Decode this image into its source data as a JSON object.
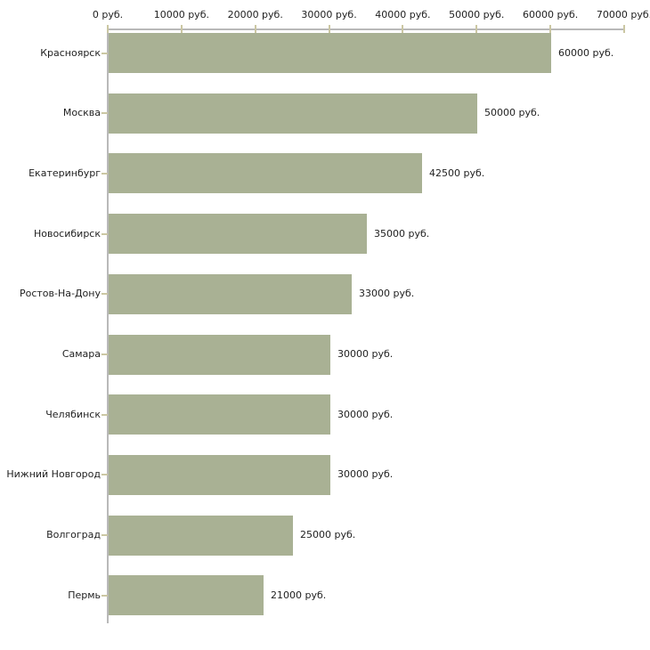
{
  "chart_data": {
    "type": "bar",
    "orientation": "horizontal",
    "title": "",
    "categories": [
      "Красноярск",
      "Москва",
      "Екатеринбург",
      "Новосибирск",
      "Ростов-На-Дону",
      "Самара",
      "Челябинск",
      "Нижний Новгород",
      "Волгоград",
      "Пермь"
    ],
    "values": [
      60000,
      50000,
      42500,
      35000,
      33000,
      30000,
      30000,
      30000,
      25000,
      21000
    ],
    "value_labels": [
      "60000 руб.",
      "50000 руб.",
      "42500 руб.",
      "35000 руб.",
      "33000 руб.",
      "30000 руб.",
      "30000 руб.",
      "30000 руб.",
      "25000 руб.",
      "21000 руб."
    ],
    "unit": "руб.",
    "x_axis": {
      "position": "top",
      "min": 0,
      "max": 70000,
      "tick_interval": 10000,
      "tick_values": [
        0,
        10000,
        20000,
        30000,
        40000,
        50000,
        60000,
        70000
      ],
      "tick_labels": [
        "0 руб.",
        "10000 руб.",
        "20000 руб.",
        "30000 руб.",
        "40000 руб.",
        "50000 руб.",
        "60000 руб.",
        "70000 руб."
      ]
    },
    "grid": false,
    "legend": false,
    "colors": {
      "bar": "#a9b194",
      "axis": "#b9b9b9",
      "tick": "#cbc7a3",
      "text": "#1f1f1f",
      "background": "#ffffff"
    }
  }
}
